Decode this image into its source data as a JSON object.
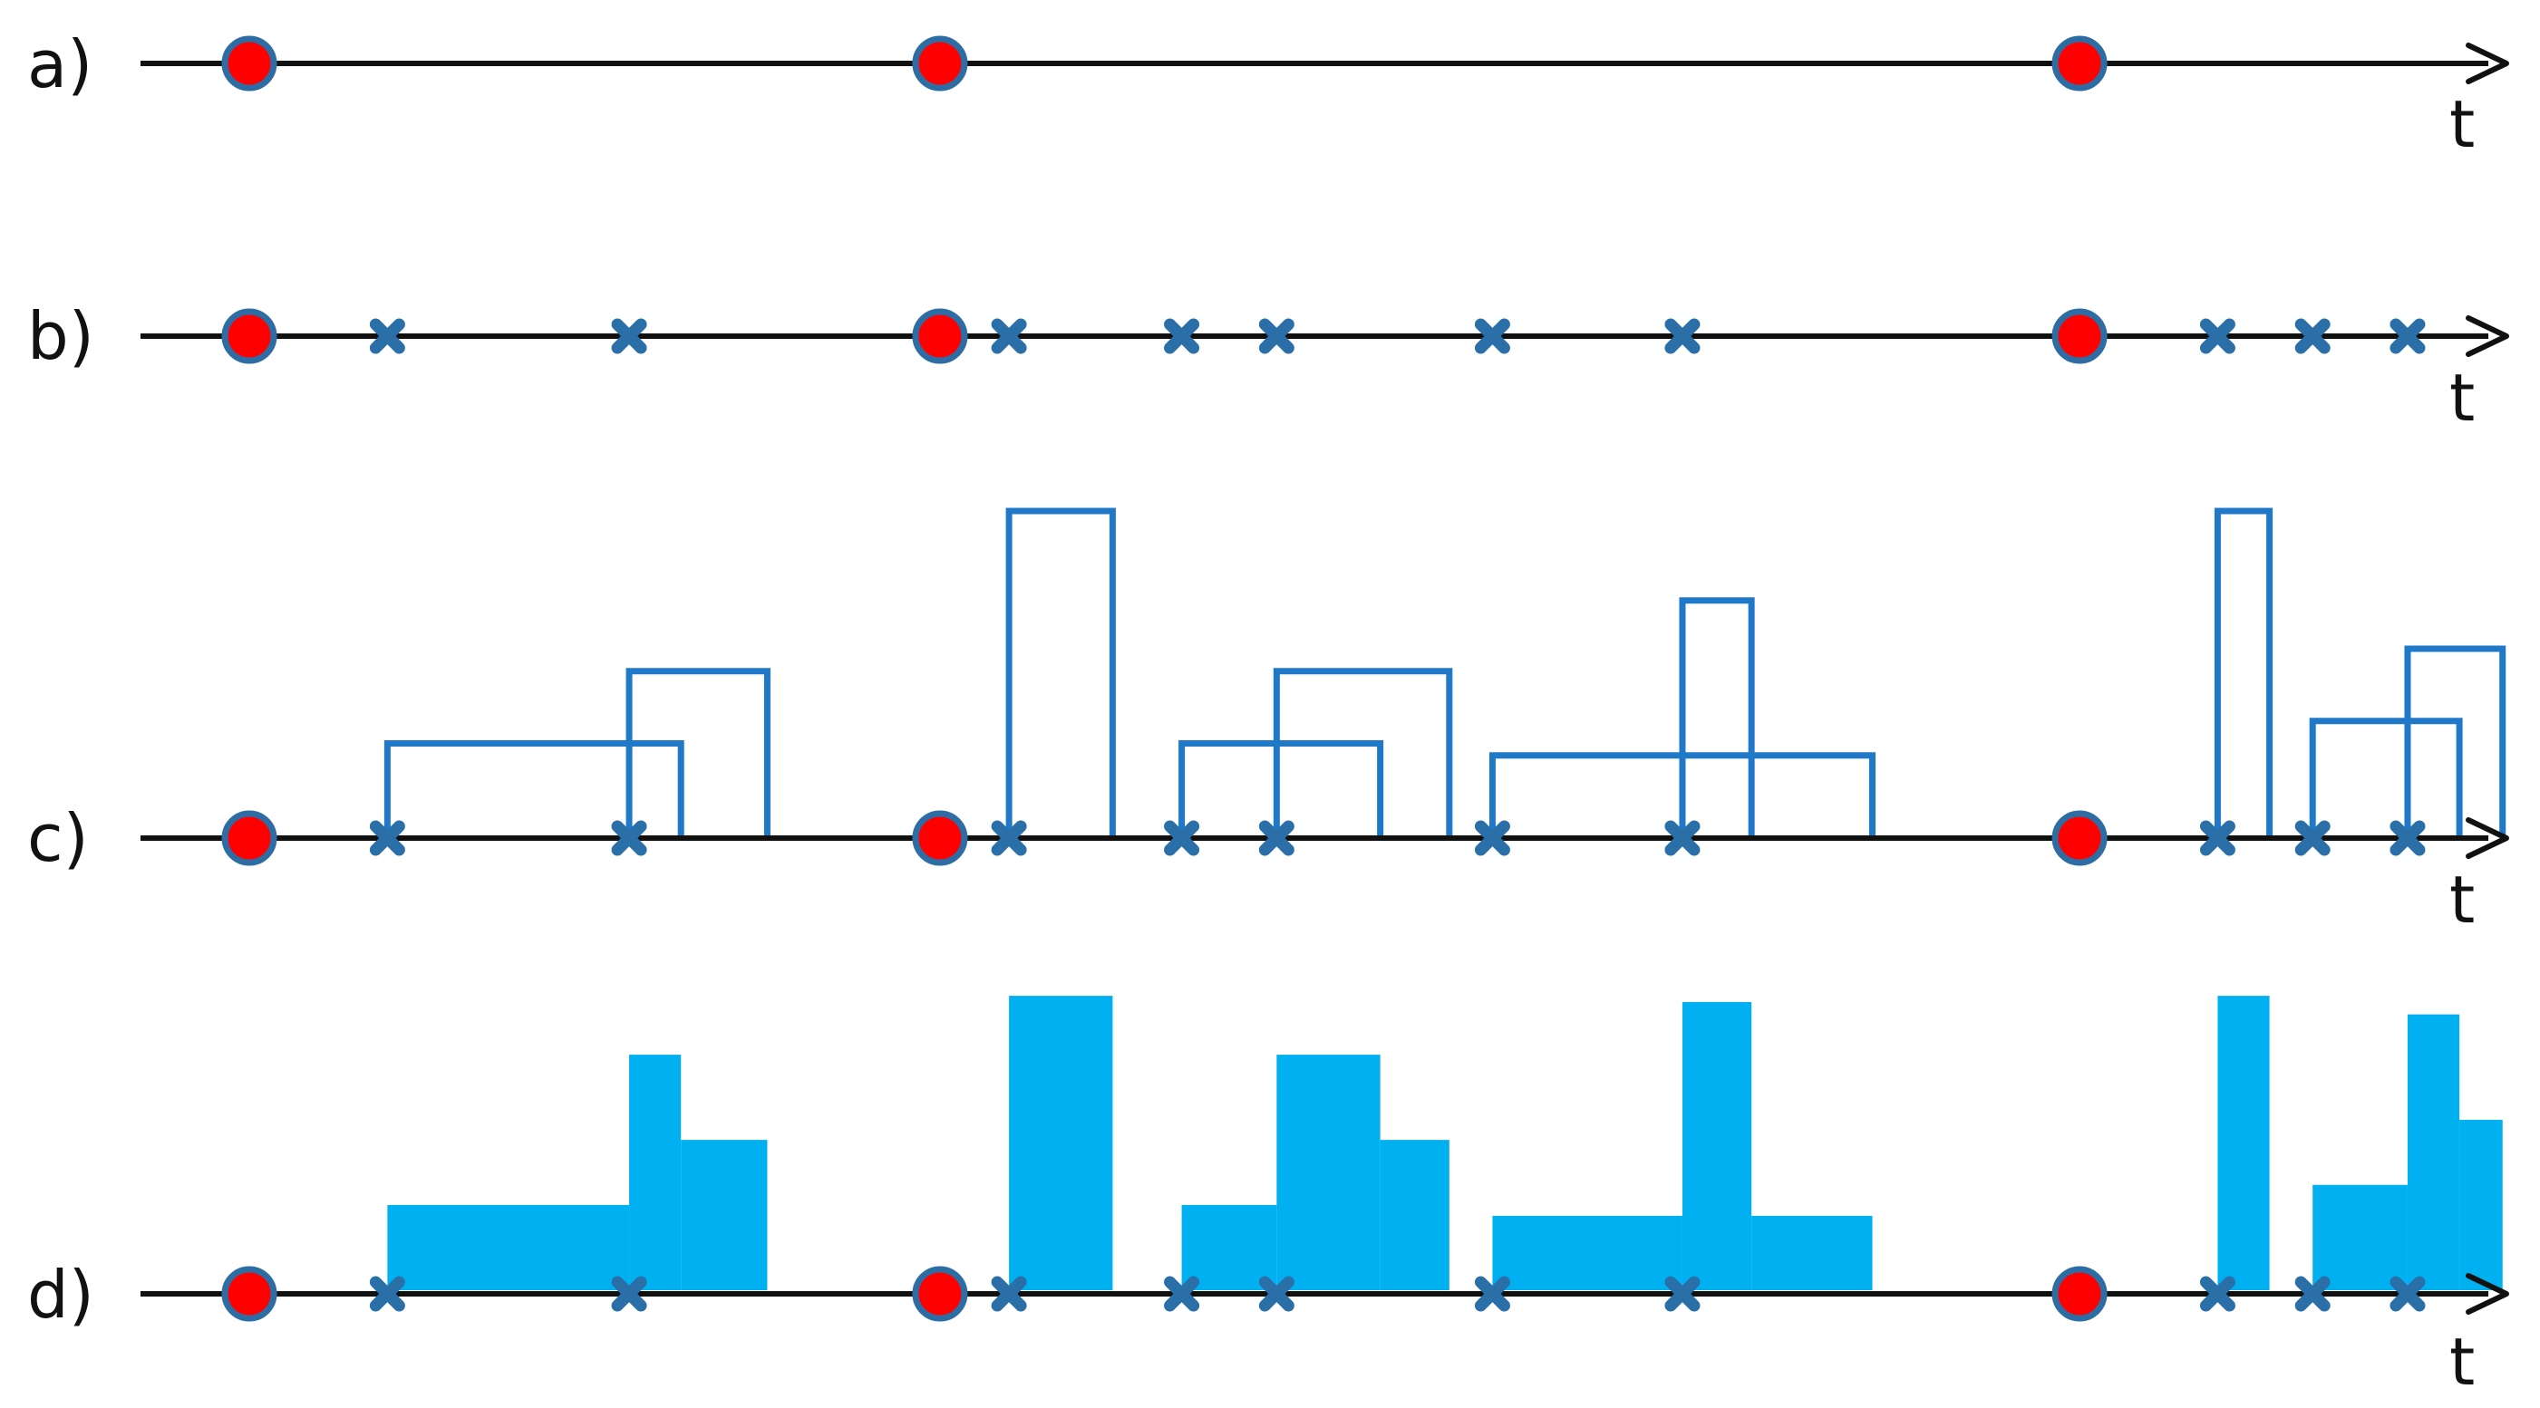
{
  "colors": {
    "axis": "#111111",
    "event_fill": "#ff0000",
    "event_stroke": "#2e6da4",
    "cross": "#2a6fa8",
    "outline": "#1f78c8",
    "fill": "#00b0f0"
  },
  "icons": {
    "event": "red-dot-icon",
    "mark": "blue-cross-icon",
    "arrow": "arrowhead-icon"
  },
  "rows": [
    {
      "label": "a)",
      "axis_label": "t"
    },
    {
      "label": "b)",
      "axis_label": "t"
    },
    {
      "label": "c)",
      "axis_label": "t"
    },
    {
      "label": "d)",
      "axis_label": "t"
    }
  ],
  "events": [
    1.0,
    5.0,
    11.6
  ],
  "marks": [
    1.8,
    3.2,
    5.4,
    6.4,
    6.95,
    8.2,
    9.3,
    12.4,
    12.95,
    13.5
  ],
  "pulses": [
    {
      "start": 1.8,
      "end": 3.5,
      "height": 0.55
    },
    {
      "start": 3.2,
      "end": 4.0,
      "height": 0.97
    },
    {
      "start": 5.4,
      "end": 6.0,
      "height": 1.9
    },
    {
      "start": 6.4,
      "end": 7.55,
      "height": 0.55
    },
    {
      "start": 6.95,
      "end": 7.95,
      "height": 0.97
    },
    {
      "start": 8.2,
      "end": 10.4,
      "height": 0.48
    },
    {
      "start": 9.3,
      "end": 9.7,
      "height": 1.38
    },
    {
      "start": 12.4,
      "end": 12.7,
      "height": 1.9
    },
    {
      "start": 12.95,
      "end": 13.8,
      "height": 0.68
    },
    {
      "start": 13.5,
      "end": 14.05,
      "height": 1.1
    }
  ]
}
